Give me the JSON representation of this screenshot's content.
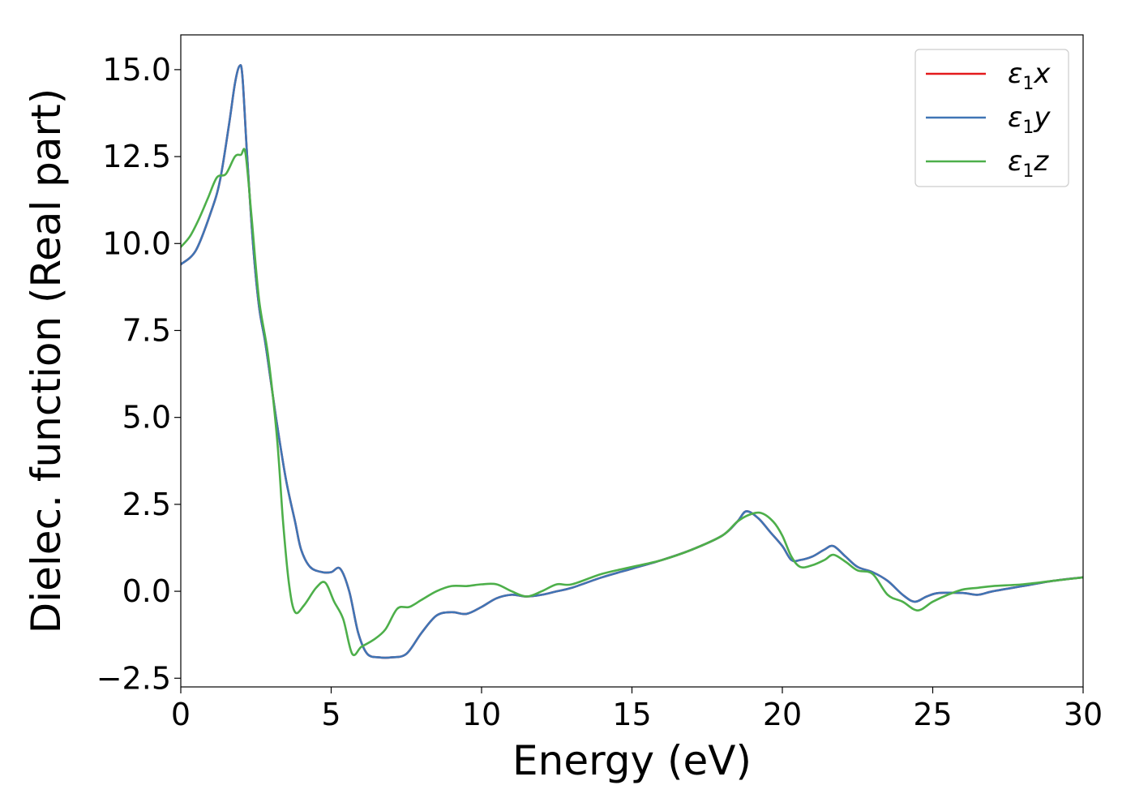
{
  "chart_data": {
    "type": "line",
    "xlabel": "Energy (eV)",
    "ylabel": "Dielec. function (Real part)",
    "xlim": [
      0,
      30
    ],
    "ylim": [
      -2.75,
      16.0
    ],
    "xticks": [
      0,
      5,
      10,
      15,
      20,
      25,
      30
    ],
    "xtick_labels": [
      "0",
      "5",
      "10",
      "15",
      "20",
      "25",
      "30"
    ],
    "yticks": [
      -2.5,
      0.0,
      2.5,
      5.0,
      7.5,
      10.0,
      12.5,
      15.0
    ],
    "ytick_labels": [
      "−2.5",
      "0.0",
      "2.5",
      "5.0",
      "7.5",
      "10.0",
      "12.5",
      "15.0"
    ],
    "grid": false,
    "legend_position": "top-right",
    "series": [
      {
        "name": "ε1x",
        "legend_symbol": "ε",
        "legend_sub": "1",
        "legend_suffix": "x",
        "color": "#e41a1c",
        "x": [
          0,
          0.5,
          1.0,
          1.3,
          1.6,
          1.8,
          1.95,
          2.05,
          2.2,
          2.4,
          2.6,
          2.8,
          3.0,
          3.2,
          3.5,
          3.8,
          4.0,
          4.3,
          4.7,
          5.0,
          5.3,
          5.6,
          5.9,
          6.2,
          6.6,
          7.0,
          7.5,
          8.0,
          8.5,
          9.0,
          9.5,
          10.0,
          10.5,
          11.0,
          11.5,
          12.0,
          12.5,
          13.0,
          14.0,
          15.0,
          16.0,
          17.0,
          18.0,
          18.5,
          18.8,
          19.2,
          19.6,
          20.0,
          20.3,
          20.6,
          21.0,
          21.4,
          21.7,
          22.1,
          22.5,
          23.0,
          23.5,
          24.0,
          24.4,
          24.8,
          25.2,
          26.0,
          26.5,
          27.0,
          28.0,
          29.0,
          30.0
        ],
        "y": [
          9.4,
          9.8,
          10.9,
          11.8,
          13.4,
          14.6,
          15.1,
          14.8,
          12.6,
          10.0,
          8.2,
          7.2,
          6.0,
          4.8,
          3.2,
          2.0,
          1.2,
          0.7,
          0.55,
          0.55,
          0.65,
          0.0,
          -1.2,
          -1.8,
          -1.9,
          -1.9,
          -1.8,
          -1.2,
          -0.7,
          -0.6,
          -0.65,
          -0.45,
          -0.2,
          -0.1,
          -0.15,
          -0.1,
          0.0,
          0.1,
          0.4,
          0.65,
          0.9,
          1.2,
          1.6,
          2.0,
          2.3,
          2.1,
          1.7,
          1.3,
          0.9,
          0.9,
          1.0,
          1.2,
          1.3,
          1.0,
          0.7,
          0.55,
          0.3,
          -0.1,
          -0.3,
          -0.15,
          -0.05,
          -0.05,
          -0.1,
          0.0,
          0.15,
          0.3,
          0.4
        ]
      },
      {
        "name": "ε1y",
        "legend_symbol": "ε",
        "legend_sub": "1",
        "legend_suffix": "y",
        "color": "#3f75b5",
        "x": [
          0,
          0.5,
          1.0,
          1.3,
          1.6,
          1.8,
          1.95,
          2.05,
          2.2,
          2.4,
          2.6,
          2.8,
          3.0,
          3.2,
          3.5,
          3.8,
          4.0,
          4.3,
          4.7,
          5.0,
          5.3,
          5.6,
          5.9,
          6.2,
          6.6,
          7.0,
          7.5,
          8.0,
          8.5,
          9.0,
          9.5,
          10.0,
          10.5,
          11.0,
          11.5,
          12.0,
          12.5,
          13.0,
          14.0,
          15.0,
          16.0,
          17.0,
          18.0,
          18.5,
          18.8,
          19.2,
          19.6,
          20.0,
          20.3,
          20.6,
          21.0,
          21.4,
          21.7,
          22.1,
          22.5,
          23.0,
          23.5,
          24.0,
          24.4,
          24.8,
          25.2,
          26.0,
          26.5,
          27.0,
          28.0,
          29.0,
          30.0
        ],
        "y": [
          9.4,
          9.8,
          10.9,
          11.8,
          13.4,
          14.6,
          15.1,
          14.8,
          12.6,
          10.0,
          8.2,
          7.2,
          6.0,
          4.8,
          3.2,
          2.0,
          1.2,
          0.7,
          0.55,
          0.55,
          0.65,
          0.0,
          -1.2,
          -1.8,
          -1.9,
          -1.9,
          -1.8,
          -1.2,
          -0.7,
          -0.6,
          -0.65,
          -0.45,
          -0.2,
          -0.1,
          -0.15,
          -0.1,
          0.0,
          0.1,
          0.4,
          0.65,
          0.9,
          1.2,
          1.6,
          2.0,
          2.3,
          2.1,
          1.7,
          1.3,
          0.9,
          0.9,
          1.0,
          1.2,
          1.3,
          1.0,
          0.7,
          0.55,
          0.3,
          -0.1,
          -0.3,
          -0.15,
          -0.05,
          -0.05,
          -0.1,
          0.0,
          0.15,
          0.3,
          0.4
        ]
      },
      {
        "name": "ε1z",
        "legend_symbol": "ε",
        "legend_sub": "1",
        "legend_suffix": "z",
        "color": "#4daf4a",
        "x": [
          0,
          0.3,
          0.6,
          0.9,
          1.2,
          1.5,
          1.8,
          2.0,
          2.15,
          2.35,
          2.6,
          2.9,
          3.2,
          3.4,
          3.6,
          3.8,
          4.1,
          4.5,
          4.8,
          5.1,
          5.4,
          5.7,
          6.0,
          6.4,
          6.8,
          7.2,
          7.6,
          8.0,
          8.5,
          9.0,
          9.5,
          10.0,
          10.5,
          11.0,
          11.5,
          12.0,
          12.5,
          13.0,
          14.0,
          15.0,
          16.0,
          17.0,
          18.0,
          18.5,
          18.9,
          19.3,
          19.7,
          20.0,
          20.3,
          20.6,
          21.0,
          21.4,
          21.7,
          22.1,
          22.5,
          23.0,
          23.5,
          24.0,
          24.5,
          25.0,
          25.5,
          26.0,
          26.5,
          27.0,
          28.0,
          29.0,
          30.0
        ],
        "y": [
          9.9,
          10.2,
          10.7,
          11.3,
          11.9,
          12.0,
          12.5,
          12.55,
          12.6,
          10.8,
          8.4,
          6.8,
          4.4,
          2.0,
          0.2,
          -0.6,
          -0.4,
          0.1,
          0.25,
          -0.3,
          -0.8,
          -1.8,
          -1.6,
          -1.4,
          -1.1,
          -0.5,
          -0.45,
          -0.25,
          0.0,
          0.15,
          0.15,
          0.2,
          0.2,
          0.0,
          -0.15,
          0.0,
          0.2,
          0.2,
          0.5,
          0.7,
          0.9,
          1.2,
          1.6,
          2.0,
          2.2,
          2.25,
          2.0,
          1.6,
          1.0,
          0.7,
          0.75,
          0.9,
          1.05,
          0.85,
          0.6,
          0.5,
          -0.1,
          -0.3,
          -0.55,
          -0.3,
          -0.1,
          0.05,
          0.1,
          0.15,
          0.2,
          0.3,
          0.4
        ]
      }
    ]
  }
}
